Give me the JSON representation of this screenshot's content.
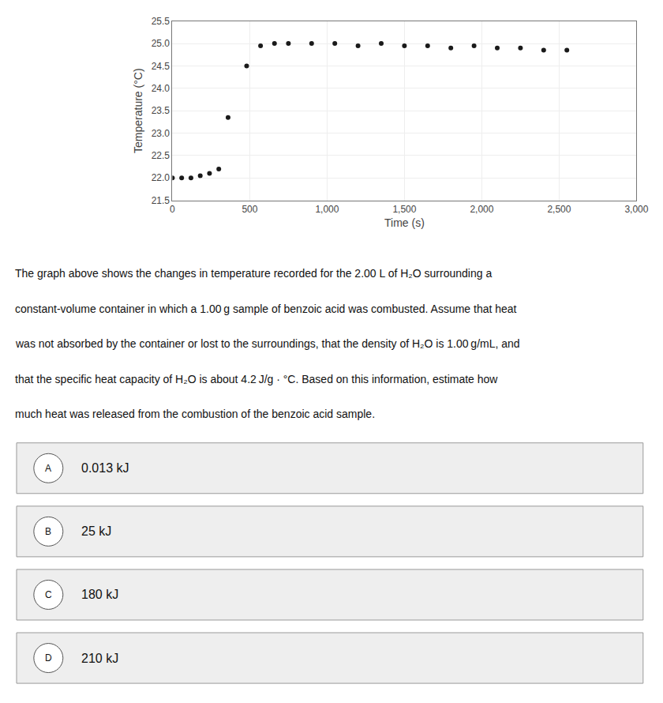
{
  "chart_data": {
    "type": "scatter",
    "x": [
      0,
      60,
      120,
      180,
      240,
      300,
      360,
      480,
      570,
      660,
      750,
      900,
      1050,
      1200,
      1350,
      1500,
      1650,
      1800,
      1950,
      2100,
      2250,
      2400,
      2550
    ],
    "values": [
      22.0,
      22.0,
      22.0,
      22.05,
      22.1,
      22.2,
      23.35,
      24.5,
      24.95,
      25.0,
      25.0,
      25.0,
      25.0,
      24.95,
      25.0,
      24.95,
      24.95,
      24.9,
      24.95,
      24.9,
      24.9,
      24.85,
      24.85
    ],
    "color": "#1a1a1a",
    "marker": "circle",
    "xlabel": "Time (s)",
    "ylabel": "Temperature (°C)",
    "xlim": [
      0,
      3000
    ],
    "ylim": [
      21.5,
      25.5
    ],
    "xticks": [
      0,
      500,
      {
        "value": 1000,
        "label": "1,000"
      },
      {
        "value": 1500,
        "label": "1,500"
      },
      {
        "value": 2000,
        "label": "2,000"
      },
      {
        "value": 2500,
        "label": "2,500"
      },
      {
        "value": 3000,
        "label": "3,000"
      }
    ],
    "yticks": [
      21.5,
      {
        "value": 22.0,
        "label": "22.0"
      },
      22.5,
      {
        "value": 23.0,
        "label": "23.0"
      },
      23.5,
      {
        "value": 24.0,
        "label": "24.0"
      },
      24.5,
      {
        "value": 25.0,
        "label": "25.0"
      },
      25.5
    ],
    "grid": true,
    "annotations": {
      "paragraph": [
        "The graph above shows the changes in temperature recorded for the 2.00 L of H₂O surrounding a",
        "constant-volume container in which a 1.00 g sample of benzoic acid was combusted. Assume that heat",
        "was not absorbed by the container or lost to the surroundings, that the density of H₂O is 1.00 g/mL, and",
        "that the specific heat capacity of H₂O is about 4.2 J/g · °C. Based on this information, estimate how",
        "much heat was released from the combustion of the benzoic acid sample."
      ],
      "choices": [
        {
          "label": "A",
          "text": "0.013 kJ"
        },
        {
          "label": "B",
          "text": "25 kJ"
        },
        {
          "label": "C",
          "text": "180 kJ"
        },
        {
          "label": "D",
          "text": "210 kJ"
        }
      ]
    }
  }
}
